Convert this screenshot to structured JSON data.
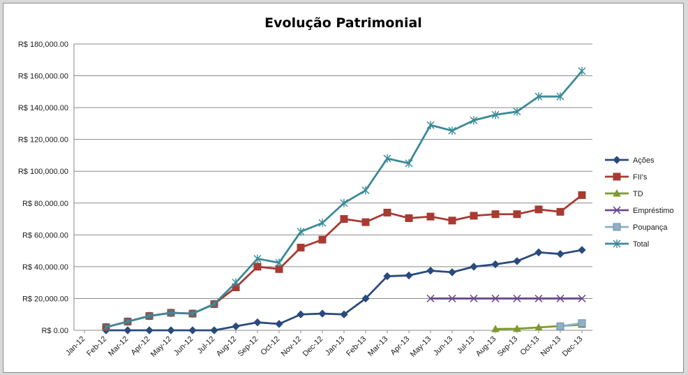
{
  "chart_data": {
    "type": "line",
    "title": "Evolução Patrimonial",
    "xlabel": "",
    "ylabel": "",
    "ylim": [
      0,
      180000
    ],
    "yticks": [
      0,
      20000,
      40000,
      60000,
      80000,
      100000,
      120000,
      140000,
      160000,
      180000
    ],
    "ytick_labels": [
      "R$ 0.00",
      "R$ 20,000.00",
      "R$ 40,000.00",
      "R$ 60,000.00",
      "R$ 80,000.00",
      "R$ 100,000.00",
      "R$ 120,000.00",
      "R$ 140,000.00",
      "R$ 160,000.00",
      "R$ 180,000.00"
    ],
    "categories": [
      "Jan-12",
      "Feb-12",
      "Mar-12",
      "Apr-12",
      "May-12",
      "Jun-12",
      "Jul-12",
      "Aug-12",
      "Sep-12",
      "Oct-12",
      "Nov-12",
      "Dec-12",
      "Jan-13",
      "Feb-13",
      "Mar-13",
      "Apr-13",
      "May-13",
      "Jun-13",
      "Jul-13",
      "Aug-13",
      "Sep-13",
      "Oct-13",
      "Nov-13",
      "Dec-13"
    ],
    "grid": true,
    "legend_position": "right",
    "series": [
      {
        "name": "Ações",
        "color": "#2a4a7f",
        "marker": "diamond",
        "values": [
          null,
          0,
          0,
          0,
          0,
          0,
          0,
          2500,
          5000,
          4000,
          10000,
          10500,
          10000,
          20000,
          34000,
          34500,
          37500,
          36500,
          40000,
          41500,
          43500,
          49000,
          48000,
          50500
        ]
      },
      {
        "name": "FII's",
        "color": "#a83a32",
        "marker": "square",
        "values": [
          null,
          2000,
          5500,
          9000,
          11000,
          10500,
          16500,
          27000,
          40000,
          38500,
          52000,
          57000,
          70000,
          68000,
          74000,
          70500,
          71500,
          69000,
          72000,
          73000,
          73000,
          76000,
          74500,
          85000
        ]
      },
      {
        "name": "TD",
        "color": "#7e9a2c",
        "marker": "triangle",
        "values": [
          null,
          null,
          null,
          null,
          null,
          null,
          null,
          null,
          null,
          null,
          null,
          null,
          null,
          null,
          null,
          null,
          null,
          null,
          null,
          800,
          1000,
          1800,
          2700,
          3500
        ]
      },
      {
        "name": "Empréstimo",
        "color": "#6a4a8c",
        "marker": "x",
        "values": [
          null,
          null,
          null,
          null,
          null,
          null,
          null,
          null,
          null,
          null,
          null,
          null,
          null,
          null,
          null,
          null,
          20000,
          20000,
          20000,
          20000,
          20000,
          20000,
          20000,
          20000
        ]
      },
      {
        "name": "Poupança",
        "color": "#8fb0c6",
        "marker": "square-light",
        "values": [
          null,
          null,
          null,
          null,
          null,
          null,
          null,
          null,
          null,
          null,
          null,
          null,
          null,
          null,
          null,
          null,
          null,
          null,
          null,
          null,
          null,
          null,
          2500,
          4500
        ]
      },
      {
        "name": "Total",
        "color": "#3a8a96",
        "marker": "star",
        "values": [
          null,
          2000,
          5500,
          9000,
          11000,
          10500,
          16500,
          30000,
          45000,
          42500,
          62000,
          67500,
          80000,
          88000,
          108000,
          105000,
          129000,
          125500,
          132000,
          135500,
          137500,
          147000,
          147000,
          163000
        ]
      }
    ]
  }
}
